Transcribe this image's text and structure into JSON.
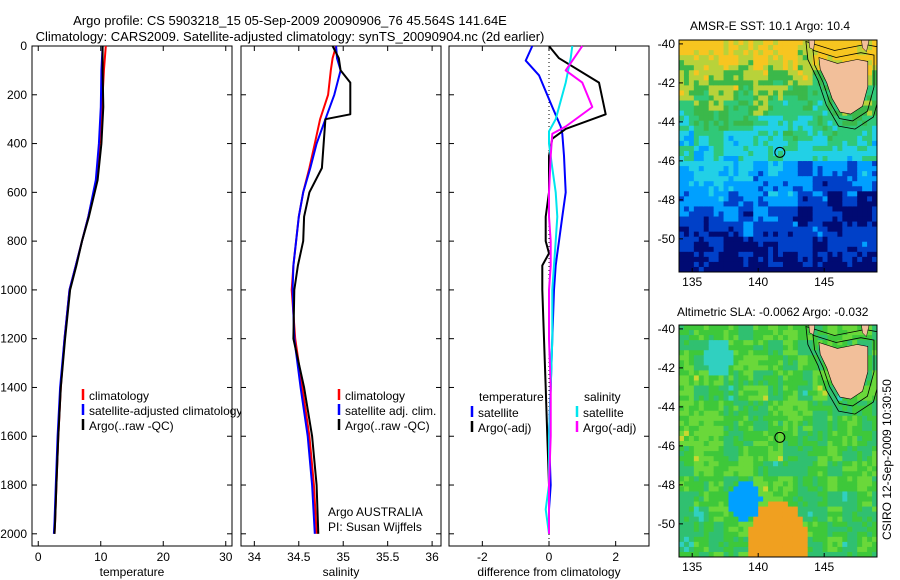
{
  "header": {
    "line1": "Argo profile: CS 5903218_15 05-Sep-2009 20090906_76 45.564S 141.64E",
    "line2": "Climatology: CARS2009. Satellite-adjusted climatology: synTS_20090904.nc (2d earlier)"
  },
  "side_label": "CSIRO 12-Sep-2009 10:30:50",
  "colors": {
    "climatology": "#ff0000",
    "satellite": "#0000ff",
    "argo": "#000000",
    "sat_salinity": "#00e5ee",
    "argo_salinity": "#ff00ff"
  },
  "chart_data": [
    {
      "type": "line",
      "panel": "temperature",
      "xlabel": "temperature",
      "xlim": [
        -1,
        31
      ],
      "ylim": [
        0,
        2050
      ],
      "y_reversed": true,
      "x_ticks": [
        0,
        10,
        20,
        30
      ],
      "y_ticks": [
        0,
        200,
        400,
        600,
        800,
        1000,
        1200,
        1400,
        1600,
        1800,
        2000
      ],
      "legend": [
        "climatology",
        "satellite-adjusted climatology",
        "Argo(..raw -QC)"
      ],
      "series": [
        {
          "name": "climatology",
          "color": "#ff0000",
          "x": [
            10.8,
            10.5,
            10.2,
            9.8,
            9.3,
            8.0,
            7.0,
            6.0,
            5.0,
            4.2,
            3.6,
            3.2,
            2.9,
            2.7,
            2.6
          ],
          "y": [
            0,
            100,
            250,
            400,
            550,
            700,
            800,
            900,
            1000,
            1200,
            1400,
            1600,
            1800,
            1950,
            2000
          ]
        },
        {
          "name": "satellite-adjusted climatology",
          "color": "#0000ff",
          "x": [
            10.3,
            10.1,
            10.0,
            9.7,
            9.2,
            8.0,
            7.0,
            6.0,
            5.0,
            4.2,
            3.5,
            3.1,
            2.8,
            2.6,
            2.5
          ],
          "y": [
            0,
            100,
            250,
            400,
            550,
            700,
            800,
            900,
            1000,
            1200,
            1400,
            1600,
            1800,
            1950,
            2000
          ]
        },
        {
          "name": "Argo(..raw -QC)",
          "color": "#000000",
          "x": [
            10.3,
            10.3,
            10.4,
            10.1,
            9.5,
            8.1,
            7.0,
            6.1,
            5.1,
            4.3,
            3.6,
            3.2,
            2.9,
            2.7,
            2.6
          ],
          "y": [
            0,
            100,
            250,
            400,
            550,
            700,
            800,
            900,
            1000,
            1200,
            1400,
            1600,
            1800,
            1950,
            2000
          ]
        }
      ]
    },
    {
      "type": "line",
      "panel": "salinity",
      "xlabel": "salinity",
      "xlim": [
        33.85,
        36.1
      ],
      "ylim": [
        0,
        2050
      ],
      "y_reversed": true,
      "x_ticks": [
        34,
        34.5,
        35,
        35.5,
        36
      ],
      "legend": [
        "climatology",
        "satellite adj. clim.",
        "Argo(..raw -QC)"
      ],
      "annotations": [
        "Argo AUSTRALIA",
        "PI: Susan Wijffels"
      ],
      "series": [
        {
          "name": "climatology",
          "color": "#ff0000",
          "x": [
            34.92,
            34.88,
            34.86,
            34.83,
            34.74,
            34.68,
            34.62,
            34.55,
            34.5,
            34.47,
            34.44,
            34.42,
            34.46,
            34.54,
            34.62,
            34.67,
            34.7
          ],
          "y": [
            0,
            50,
            100,
            200,
            300,
            400,
            500,
            600,
            700,
            800,
            900,
            1000,
            1200,
            1400,
            1600,
            1800,
            2000
          ]
        },
        {
          "name": "satellite adj. clim.",
          "color": "#0000ff",
          "x": [
            34.92,
            34.93,
            34.97,
            34.9,
            34.8,
            34.7,
            34.63,
            34.55,
            34.5,
            34.47,
            34.44,
            34.43,
            34.45,
            34.52,
            34.6,
            34.65,
            34.68
          ],
          "y": [
            0,
            50,
            100,
            200,
            300,
            400,
            500,
            600,
            700,
            800,
            900,
            1000,
            1200,
            1400,
            1600,
            1800,
            2000
          ]
        },
        {
          "name": "Argo(..raw -QC)",
          "color": "#000000",
          "x": [
            34.88,
            34.95,
            34.97,
            35.08,
            35.08,
            34.8,
            34.76,
            34.62,
            34.56,
            34.55,
            34.49,
            34.45,
            34.44,
            34.56,
            34.65,
            34.7,
            34.72
          ],
          "y": [
            0,
            50,
            100,
            150,
            280,
            300,
            500,
            600,
            700,
            800,
            900,
            1000,
            1200,
            1400,
            1600,
            1800,
            2000
          ]
        }
      ]
    },
    {
      "type": "line",
      "panel": "difference",
      "xlabel": "difference from climatology",
      "xlim": [
        -3,
        3
      ],
      "ylim": [
        0,
        2050
      ],
      "y_reversed": true,
      "x_ticks": [
        -2,
        0,
        2
      ],
      "legend_headers": [
        "temperature",
        "salinity"
      ],
      "legend": [
        "satellite",
        "Argo(-adj)",
        "satellite",
        "Argo(-adj)"
      ],
      "series": [
        {
          "name": "satellite",
          "group": "temperature",
          "color": "#0000ff",
          "x": [
            -0.5,
            -0.7,
            -0.3,
            0.1,
            0.35,
            0.4,
            0.45,
            0.5,
            0.4,
            0.3,
            0.25,
            0.2,
            0.15,
            0.1,
            0.05,
            0.0,
            0.05,
            0.0,
            0.0
          ],
          "y": [
            0,
            60,
            120,
            250,
            330,
            360,
            450,
            600,
            700,
            800,
            850,
            900,
            1000,
            1200,
            1400,
            1600,
            1800,
            1900,
            2000
          ]
        },
        {
          "name": "Argo(-adj)",
          "group": "temperature",
          "color": "#000000",
          "x": [
            0.0,
            0.3,
            1.5,
            1.7,
            0.5,
            0.1,
            0.0,
            0.0,
            -0.1,
            -0.1,
            0.0,
            -0.2,
            -0.2,
            -0.15,
            -0.1,
            -0.05,
            0.0,
            0.0
          ],
          "y": [
            0,
            50,
            150,
            280,
            340,
            380,
            450,
            600,
            700,
            800,
            850,
            900,
            1000,
            1200,
            1400,
            1600,
            1800,
            2000
          ]
        },
        {
          "name": "satellite",
          "group": "salinity",
          "color": "#00e5ee",
          "x": [
            0.7,
            0.65,
            0.5,
            0.2,
            0.0,
            0.0,
            0.1,
            0.2,
            0.25,
            0.2,
            0.15,
            0.1,
            0.1,
            0.05,
            0.0,
            0.0,
            -0.1,
            0.0
          ],
          "y": [
            0,
            50,
            150,
            300,
            350,
            400,
            500,
            600,
            700,
            800,
            900,
            1000,
            1200,
            1400,
            1600,
            1800,
            1900,
            2000
          ]
        },
        {
          "name": "Argo(-adj)",
          "group": "salinity",
          "color": "#ff00ff",
          "x": [
            1.0,
            0.5,
            1.0,
            1.3,
            0.5,
            0.1,
            0.05,
            0.0,
            0.0,
            0.05,
            0.05,
            0.0,
            0.0,
            0.05,
            0.05,
            0.0,
            0.0
          ],
          "y": [
            0,
            100,
            150,
            250,
            330,
            360,
            450,
            600,
            700,
            800,
            900,
            1000,
            1200,
            1400,
            1600,
            1800,
            2000
          ]
        }
      ]
    },
    {
      "type": "heatmap",
      "panel": "sst_map",
      "title": "AMSR-E SST: 10.1 Argo: 10.4",
      "xlim": [
        134,
        149
      ],
      "ylim": [
        -51.7,
        -39.8
      ],
      "x_ticks": [
        135,
        140,
        145
      ],
      "y_ticks": [
        -40,
        -42,
        -44,
        -46,
        -48,
        -50
      ],
      "marker": {
        "lon": 141.64,
        "lat": -45.564
      }
    },
    {
      "type": "heatmap",
      "panel": "sla_map",
      "title": "Altimetric SLA: -0.0062 Argo: -0.032",
      "xlim": [
        134,
        149
      ],
      "ylim": [
        -51.7,
        -39.8
      ],
      "x_ticks": [
        135,
        140,
        145
      ],
      "y_ticks": [
        -40,
        -42,
        -44,
        -46,
        -48,
        -50
      ],
      "marker": {
        "lon": 141.64,
        "lat": -45.564
      }
    }
  ]
}
